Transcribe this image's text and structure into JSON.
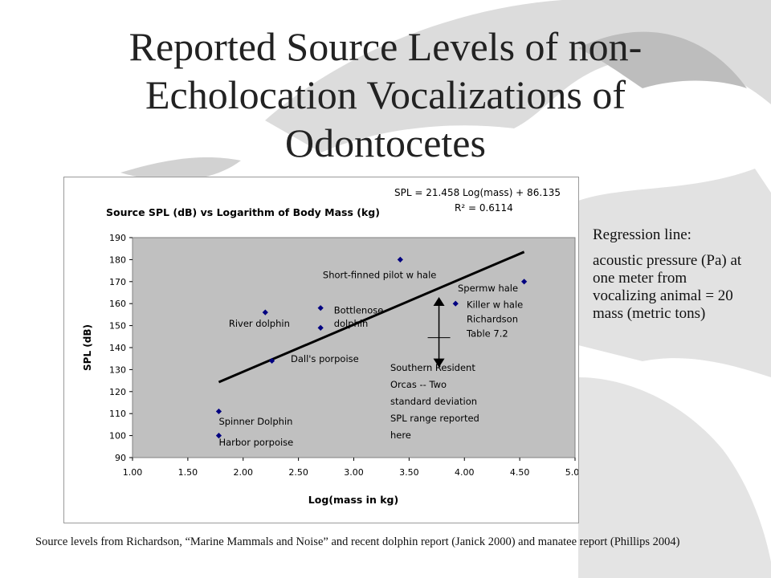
{
  "slide": {
    "title_line1": "Reported Source Levels of non-",
    "title_line2": "Echolocation Vocalizations of",
    "title_line3": "Odontocetes",
    "side_note_heading": "Regression line:",
    "side_note_body": "acoustic pressure (Pa) at one meter from vocalizing animal  = 20 mass (metric tons)",
    "footer": "Source levels from Richardson, “Marine Mammals and Noise” and recent dolphin report (Janick 2000) and manatee report (Phillips 2004)"
  },
  "chart_data": {
    "type": "scatter",
    "title": "Source SPL (dB) vs Logarithm of Body Mass (kg)",
    "xlabel": "Log(mass in kg)",
    "ylabel": "SPL (dB)",
    "xlim": [
      1.0,
      5.0
    ],
    "ylim": [
      90,
      190
    ],
    "x_ticks": [
      "1.00",
      "1.50",
      "2.00",
      "2.50",
      "3.00",
      "3.50",
      "4.00",
      "4.50",
      "5.00"
    ],
    "y_ticks": [
      "90",
      "100",
      "110",
      "120",
      "130",
      "140",
      "150",
      "160",
      "170",
      "180",
      "190"
    ],
    "grid": false,
    "plot_area_color": "#c0c0c0",
    "marker_color": "#000080",
    "equation_line1": "SPL = 21.458 Log(mass) + 86.135",
    "equation_line2": "R² = 0.6114",
    "points": [
      {
        "x": 1.78,
        "y": 111
      },
      {
        "x": 1.78,
        "y": 100
      },
      {
        "x": 2.2,
        "y": 156
      },
      {
        "x": 2.26,
        "y": 134
      },
      {
        "x": 2.7,
        "y": 158
      },
      {
        "x": 2.7,
        "y": 149
      },
      {
        "x": 3.42,
        "y": 180
      },
      {
        "x": 3.92,
        "y": 160
      },
      {
        "x": 4.54,
        "y": 170
      }
    ],
    "labels": [
      {
        "text": "Spinner Dolphin",
        "x": 1.78,
        "y": 105
      },
      {
        "text": "Harbor porpoise",
        "x": 1.78,
        "y": 95.5
      },
      {
        "text": "River dolphin",
        "x": 1.87,
        "y": 149.5
      },
      {
        "text": "Dall's porpoise",
        "x": 2.43,
        "y": 133.5
      },
      {
        "text": "Bottlenose",
        "x": 2.82,
        "y": 155.5
      },
      {
        "text": "dolphin",
        "x": 2.82,
        "y": 149.5
      },
      {
        "text": "Short-finned pilot w hale",
        "x": 2.72,
        "y": 171.5
      },
      {
        "text": "Spermw hale",
        "x": 3.94,
        "y": 165.5
      },
      {
        "text": "Killer w hale",
        "x": 4.02,
        "y": 158
      },
      {
        "text": "Richardson",
        "x": 4.02,
        "y": 151.5
      },
      {
        "text": "Table 7.2",
        "x": 4.02,
        "y": 145
      }
    ],
    "regression": {
      "x": [
        1.78,
        4.54
      ],
      "y": [
        124.3,
        183.5
      ]
    },
    "range_arrow": {
      "x": 3.77,
      "y_top": 163,
      "y_bottom": 131,
      "tick_y": 144.5
    },
    "annotation_lines": [
      "Southern Resident",
      "Orcas  -- Two",
      "standard deviation",
      "SPL range reported",
      "here"
    ],
    "annotation_anchor": {
      "x": 3.33,
      "y": 129.5
    }
  }
}
